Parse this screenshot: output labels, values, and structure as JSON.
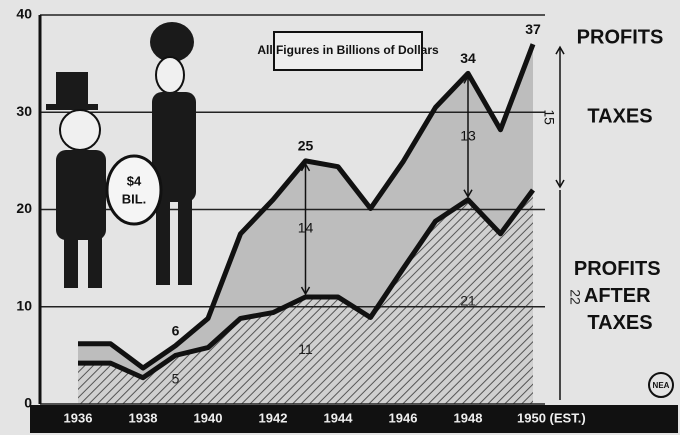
{
  "chart_data": {
    "type": "line",
    "note": "All Figures in Billions of Dollars",
    "cartoon_label": [
      "$4",
      "BIL."
    ],
    "logo": "NEA",
    "categories": [
      "1936",
      null,
      "1938",
      null,
      "1940",
      null,
      "1942",
      null,
      "1944",
      null,
      "1946",
      null,
      "1948",
      null,
      "1950 (EST.)"
    ],
    "series": [
      {
        "name": "PROFITS",
        "color": "#111111",
        "fill": "#bdbdbd",
        "values": [
          6.2,
          6.2,
          3.7,
          6,
          8.8,
          17.5,
          21,
          25,
          24.4,
          20.1,
          24.9,
          30.5,
          34,
          28.2,
          37
        ],
        "value_labels": [
          null,
          null,
          null,
          "6",
          null,
          null,
          null,
          "25",
          null,
          null,
          null,
          null,
          "34",
          null,
          "37"
        ]
      },
      {
        "name": "PROFITS AFTER TAXES",
        "color": "#111111",
        "fill": "hatch",
        "values": [
          4.2,
          4.2,
          2.7,
          5,
          5.8,
          8.8,
          9.4,
          11,
          11,
          8.9,
          13.9,
          18.8,
          21,
          17.5,
          22
        ],
        "value_labels": [
          null,
          null,
          null,
          "5",
          null,
          null,
          null,
          "11",
          null,
          null,
          null,
          null,
          "21",
          null,
          "22"
        ]
      },
      {
        "name": "TAXES",
        "type": "arrow",
        "values": [
          null,
          null,
          null,
          null,
          null,
          null,
          null,
          14,
          null,
          null,
          null,
          null,
          13,
          null,
          15
        ]
      }
    ],
    "ylim": [
      0,
      40
    ],
    "yticks": [
      0,
      10,
      20,
      30,
      40
    ],
    "grid": true
  }
}
